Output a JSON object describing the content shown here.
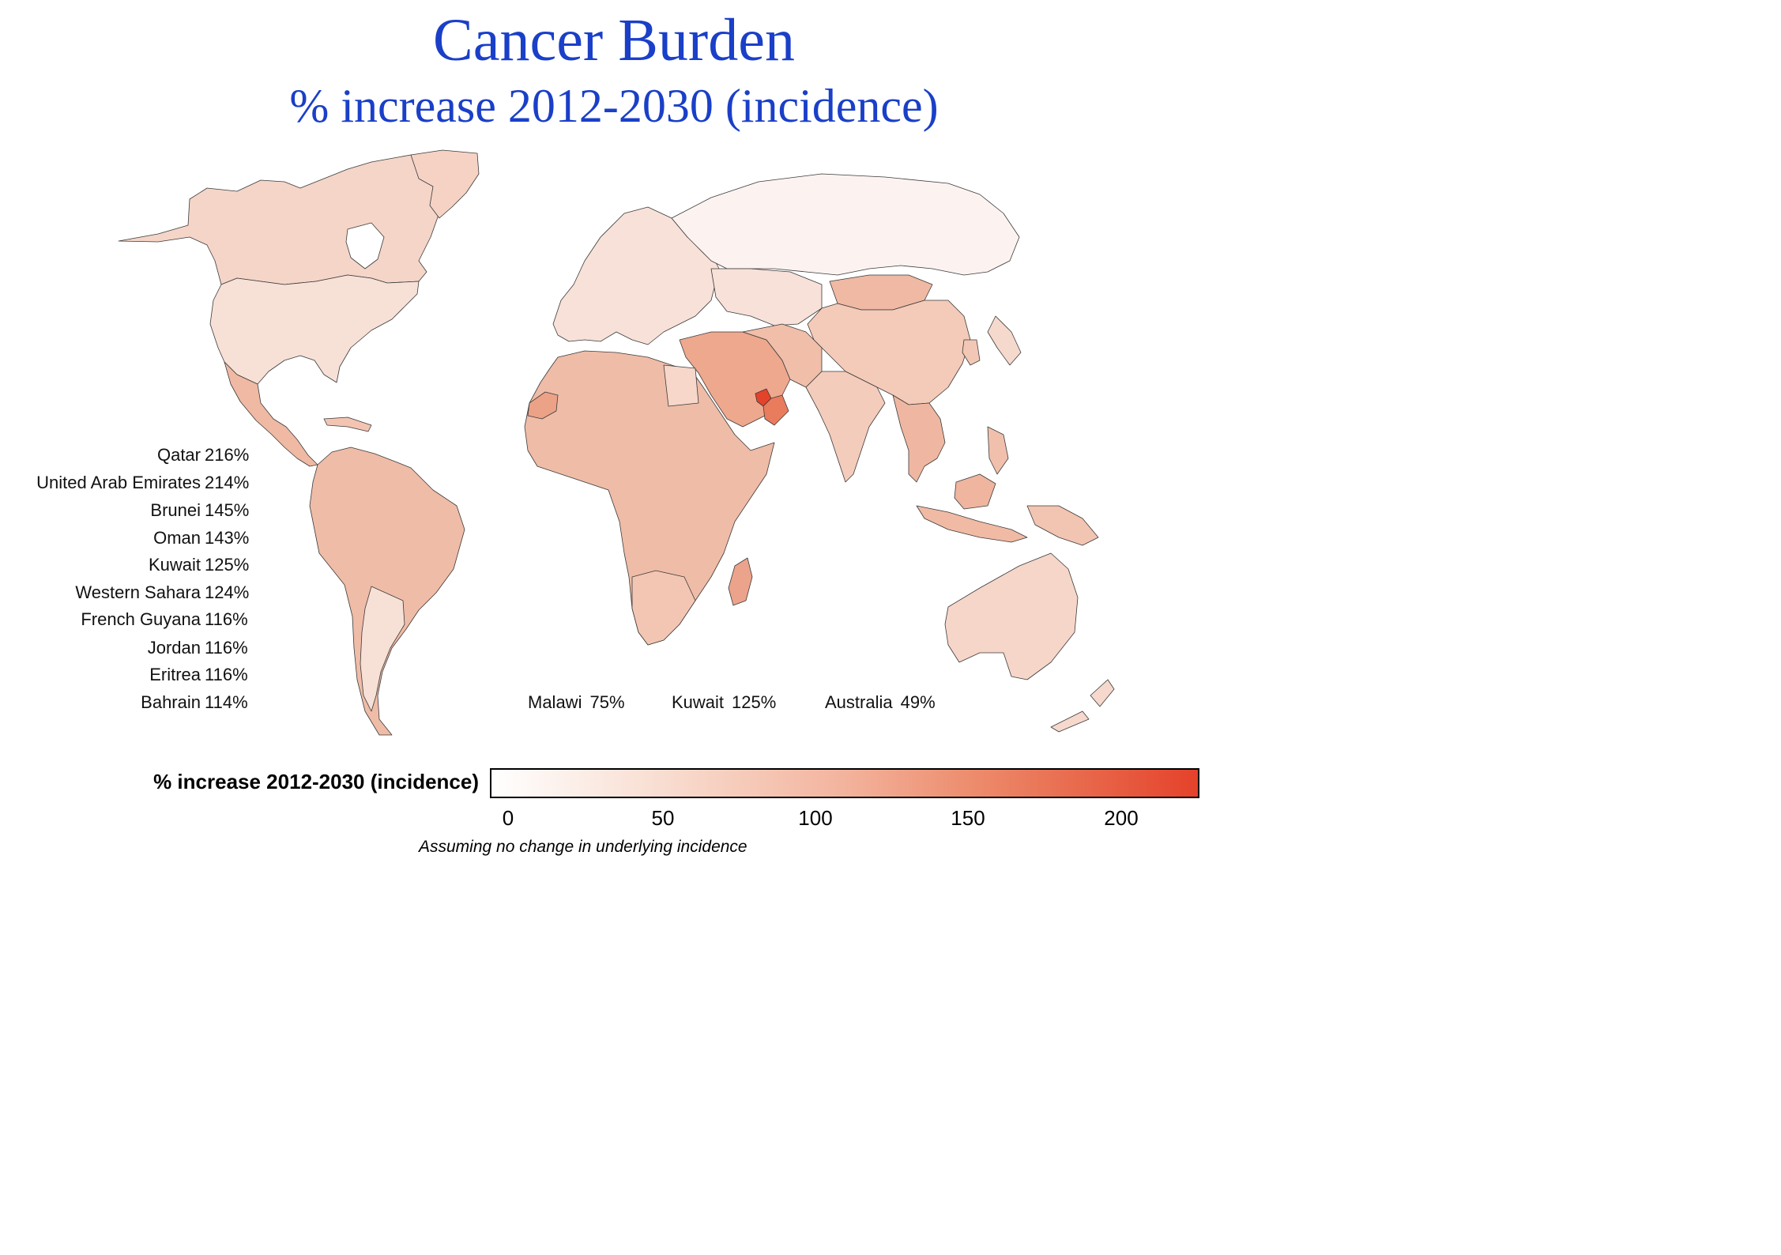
{
  "title": "Cancer Burden",
  "subtitle": "% increase  2012-2030 (incidence)",
  "top_countries": [
    {
      "country": "Qatar",
      "value": "216%"
    },
    {
      "country": "United Arab Emirates",
      "value": "214%"
    },
    {
      "country": "Brunei",
      "value": "145%"
    },
    {
      "country": "Oman",
      "value": "143%"
    },
    {
      "country": "Kuwait",
      "value": "125%"
    },
    {
      "country": "Western Sahara",
      "value": "124%"
    },
    {
      "country": "French Guyana",
      "value": "116%"
    },
    {
      "country": "Jordan",
      "value": "116%"
    },
    {
      "country": "Eritrea",
      "value": "116%"
    },
    {
      "country": "Bahrain",
      "value": "114%"
    }
  ],
  "highlights": [
    {
      "country": "Malawi",
      "value": "75%"
    },
    {
      "country": "Kuwait",
      "value": "125%"
    },
    {
      "country": "Australia",
      "value": "49%"
    }
  ],
  "legend": {
    "label": "% increase 2012-2030 (incidence)",
    "ticks": [
      "0",
      "50",
      "100",
      "150",
      "200"
    ],
    "range": [
      0,
      225
    ],
    "note": "Assuming no change in underlying incidence"
  },
  "colors": {
    "title": "#1a3fc8",
    "scale_low": "#ffffff",
    "scale_high": "#e4422a"
  }
}
